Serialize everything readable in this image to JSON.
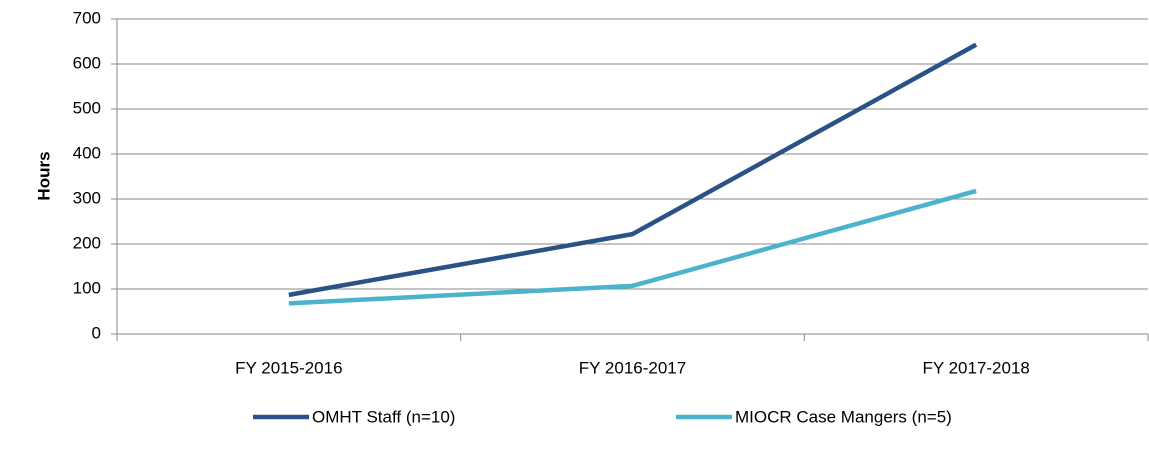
{
  "chart_data": {
    "type": "line",
    "y_label": "Hours",
    "categories": [
      "FY 2015-2016",
      "FY 2016-2017",
      "FY 2017-2018"
    ],
    "series": [
      {
        "name": "OMHT Staff (n=10)",
        "color": "#2a5286",
        "values": [
          87,
          222,
          643
        ]
      },
      {
        "name": "MIOCR Case Mangers (n=5)",
        "color": "#4bb3cc",
        "values": [
          68,
          107,
          318
        ]
      }
    ],
    "ylim": [
      0,
      700
    ],
    "yticks": [
      0,
      100,
      200,
      300,
      400,
      500,
      600,
      700
    ],
    "grid": true,
    "legend": "bottom"
  }
}
